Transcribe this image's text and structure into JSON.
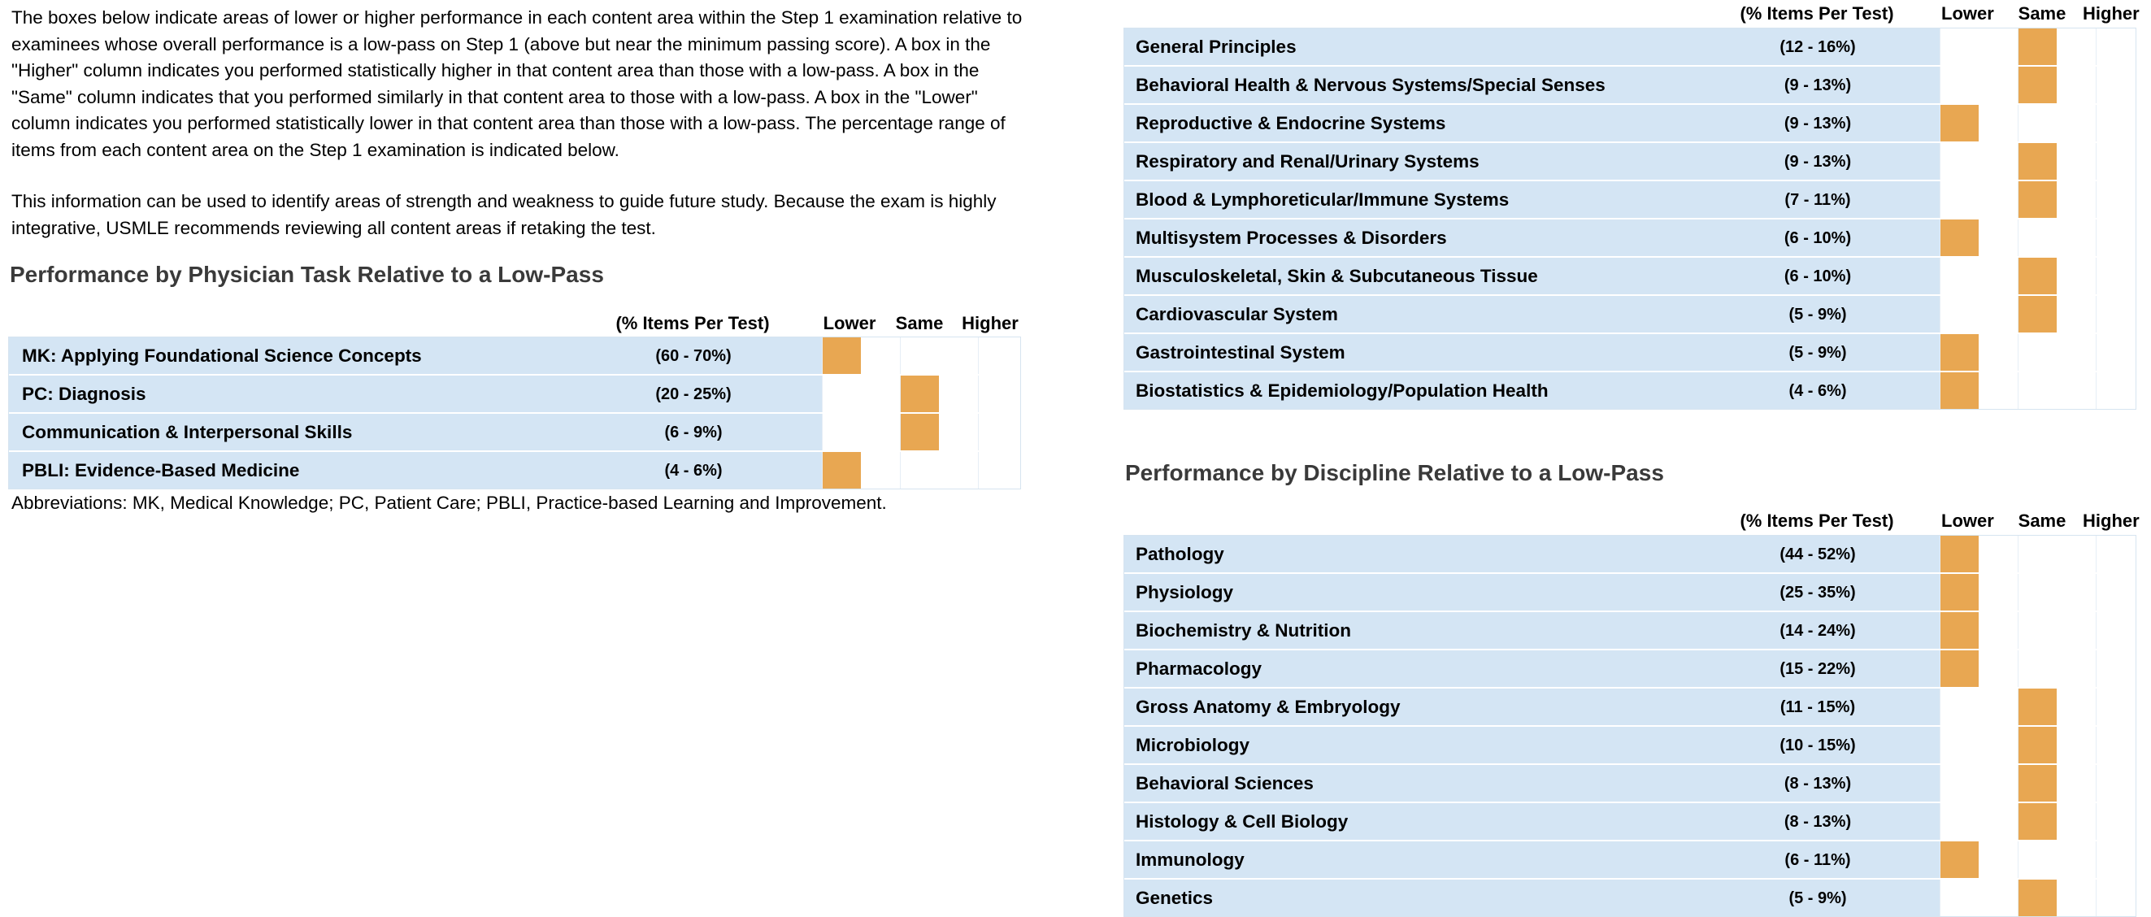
{
  "intro": {
    "paragraph_1": "The boxes below indicate areas of lower or higher performance in each content area within the Step 1 examination relative to examinees whose overall performance is a low-pass on Step 1 (above but near the minimum passing score). A box in the \"Higher\" column indicates you performed statistically higher in that content area than those with a low-pass. A box in the \"Same\" column indicates that you performed similarly in that content area to those with a low-pass. A box in the \"Lower\" column indicates you performed statistically lower in that content area than those with a low-pass. The percentage range of items from each content area on the Step 1 examination is indicated below.",
    "paragraph_2": "This information can be used to identify areas of strength and weakness to guide future study. Because the exam is highly integrative, USMLE recommends reviewing all content areas if retaking the test."
  },
  "columns": {
    "pct": "(% Items Per Test)",
    "lower": "Lower",
    "same": "Same",
    "higher": "Higher"
  },
  "colors": {
    "row_fill": "#d4e5f4",
    "performance_box": "#e8a752"
  },
  "task_section": {
    "title": "Performance by Physician Task Relative to a Low-Pass",
    "rows": [
      {
        "name": "MK: Applying Foundational Science Concepts",
        "pct": "(60 - 70%)",
        "level": "Lower"
      },
      {
        "name": "PC: Diagnosis",
        "pct": "(20 - 25%)",
        "level": "Same"
      },
      {
        "name": "Communication & Interpersonal Skills",
        "pct": "(6 - 9%)",
        "level": "Same"
      },
      {
        "name": "PBLI: Evidence-Based Medicine",
        "pct": "(4 - 6%)",
        "level": "Lower"
      }
    ],
    "abbreviations": "Abbreviations: MK, Medical Knowledge; PC, Patient Care; PBLI, Practice-based Learning and Improvement."
  },
  "system_section": {
    "rows": [
      {
        "name": "General Principles",
        "pct": "(12 - 16%)",
        "level": "Same"
      },
      {
        "name": "Behavioral Health & Nervous Systems/Special Senses",
        "pct": "(9 - 13%)",
        "level": "Same"
      },
      {
        "name": "Reproductive & Endocrine Systems",
        "pct": "(9 - 13%)",
        "level": "Lower"
      },
      {
        "name": "Respiratory and Renal/Urinary Systems",
        "pct": "(9 - 13%)",
        "level": "Same"
      },
      {
        "name": "Blood & Lymphoreticular/Immune Systems",
        "pct": "(7 - 11%)",
        "level": "Same"
      },
      {
        "name": "Multisystem Processes & Disorders",
        "pct": "(6 - 10%)",
        "level": "Lower"
      },
      {
        "name": "Musculoskeletal, Skin & Subcutaneous Tissue",
        "pct": "(6 - 10%)",
        "level": "Same"
      },
      {
        "name": "Cardiovascular System",
        "pct": "(5 - 9%)",
        "level": "Same"
      },
      {
        "name": "Gastrointestinal System",
        "pct": "(5 - 9%)",
        "level": "Lower"
      },
      {
        "name": "Biostatistics & Epidemiology/Population Health",
        "pct": "(4 - 6%)",
        "level": "Lower"
      }
    ]
  },
  "discipline_section": {
    "title": "Performance by Discipline Relative to a Low-Pass",
    "rows": [
      {
        "name": "Pathology",
        "pct": "(44 - 52%)",
        "level": "Lower"
      },
      {
        "name": "Physiology",
        "pct": "(25 - 35%)",
        "level": "Lower"
      },
      {
        "name": "Biochemistry & Nutrition",
        "pct": "(14 - 24%)",
        "level": "Lower"
      },
      {
        "name": "Pharmacology",
        "pct": "(15 - 22%)",
        "level": "Lower"
      },
      {
        "name": "Gross Anatomy & Embryology",
        "pct": "(11 - 15%)",
        "level": "Same"
      },
      {
        "name": "Microbiology",
        "pct": "(10 - 15%)",
        "level": "Same"
      },
      {
        "name": "Behavioral Sciences",
        "pct": "(8 - 13%)",
        "level": "Same"
      },
      {
        "name": "Histology & Cell Biology",
        "pct": "(8 - 13%)",
        "level": "Same"
      },
      {
        "name": "Immunology",
        "pct": "(6 - 11%)",
        "level": "Lower"
      },
      {
        "name": "Genetics",
        "pct": "(5 - 9%)",
        "level": "Same"
      }
    ]
  }
}
